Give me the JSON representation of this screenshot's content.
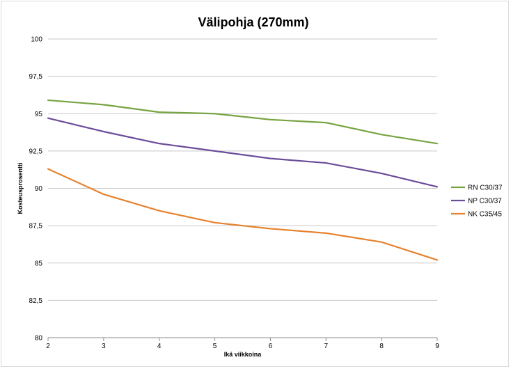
{
  "chart_data": {
    "type": "line",
    "title": "Välipohja (270mm)",
    "xlabel": "Ikä viikkoina",
    "ylabel": "Kosteusprosentti",
    "x": [
      2,
      3,
      4,
      5,
      6,
      7,
      8,
      9
    ],
    "x_tick_labels": [
      "2",
      "3",
      "4",
      "5",
      "6",
      "7",
      "8",
      "9"
    ],
    "xlim": [
      2,
      9
    ],
    "ylim": [
      80,
      100
    ],
    "y_ticks": [
      80,
      82.5,
      85,
      87.5,
      90,
      92.5,
      95,
      97.5,
      100
    ],
    "y_tick_labels": [
      "80",
      "82,5",
      "85",
      "87,5",
      "90",
      "92,5",
      "95",
      "97,5",
      "100"
    ],
    "grid": true,
    "legend_position": "right",
    "series": [
      {
        "name": "RN C30/37",
        "color": "#77a441",
        "values": [
          95.9,
          95.6,
          95.1,
          95.0,
          94.6,
          94.4,
          93.6,
          93.0
        ]
      },
      {
        "name": "NP C30/37",
        "color": "#6b4c9a",
        "values": [
          94.7,
          93.8,
          93.0,
          92.5,
          92.0,
          91.7,
          91.0,
          90.1
        ]
      },
      {
        "name": "NK C35/45",
        "color": "#e6822e",
        "values": [
          91.3,
          89.6,
          88.5,
          87.7,
          87.3,
          87.0,
          86.4,
          85.2
        ]
      }
    ]
  }
}
